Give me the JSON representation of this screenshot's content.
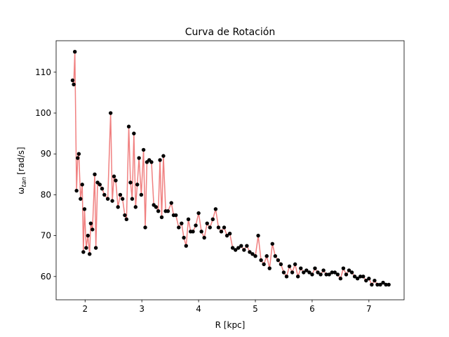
{
  "chart_data": {
    "type": "line",
    "title": "Curva de Rotación",
    "xlabel": "R [kpc]",
    "ylabel_symbol": "ω",
    "ylabel_subscript": "tan",
    "ylabel_unit": "[rad/s]",
    "xlim": [
      1.49,
      7.62
    ],
    "ylim": [
      54.3,
      117.7
    ],
    "xticks": [
      2,
      3,
      4,
      5,
      6,
      7
    ],
    "yticks": [
      60,
      70,
      80,
      90,
      100,
      110
    ],
    "line_color": "#f08080",
    "marker_color": "#000000",
    "x": [
      1.78,
      1.8,
      1.82,
      1.85,
      1.87,
      1.89,
      1.92,
      1.95,
      1.97,
      1.99,
      2.02,
      2.05,
      2.08,
      2.1,
      2.13,
      2.17,
      2.19,
      2.22,
      2.26,
      2.3,
      2.34,
      2.4,
      2.45,
      2.48,
      2.51,
      2.54,
      2.58,
      2.62,
      2.66,
      2.7,
      2.73,
      2.77,
      2.8,
      2.83,
      2.86,
      2.89,
      2.92,
      2.95,
      2.99,
      3.03,
      3.06,
      3.09,
      3.13,
      3.17,
      3.21,
      3.25,
      3.29,
      3.32,
      3.35,
      3.38,
      3.42,
      3.46,
      3.52,
      3.56,
      3.6,
      3.65,
      3.7,
      3.74,
      3.78,
      3.82,
      3.86,
      3.9,
      3.95,
      4.0,
      4.05,
      4.1,
      4.15,
      4.2,
      4.25,
      4.3,
      4.35,
      4.4,
      4.45,
      4.5,
      4.55,
      4.6,
      4.65,
      4.7,
      4.75,
      4.8,
      4.85,
      4.9,
      4.95,
      5.0,
      5.05,
      5.1,
      5.15,
      5.2,
      5.25,
      5.3,
      5.35,
      5.4,
      5.45,
      5.5,
      5.55,
      5.6,
      5.65,
      5.7,
      5.75,
      5.8,
      5.85,
      5.9,
      5.95,
      6.0,
      6.05,
      6.1,
      6.15,
      6.2,
      6.25,
      6.3,
      6.35,
      6.4,
      6.45,
      6.5,
      6.55,
      6.6,
      6.65,
      6.7,
      6.75,
      6.8,
      6.85,
      6.9,
      6.95,
      7.0,
      7.05,
      7.1,
      7.15,
      7.2,
      7.25,
      7.3,
      7.35
    ],
    "values": [
      108,
      107,
      115,
      81,
      89,
      90,
      79,
      82.5,
      66,
      76.5,
      67,
      70,
      65.5,
      73,
      71.5,
      85,
      67,
      83,
      82.5,
      81.5,
      80,
      79,
      100,
      78.5,
      84.5,
      83.5,
      77,
      80,
      79,
      75,
      74,
      96.7,
      83,
      79,
      95,
      77,
      82.5,
      89,
      80,
      91,
      72,
      88,
      88.5,
      88,
      77.5,
      77,
      76,
      88.5,
      74.5,
      89.5,
      76,
      76,
      78,
      75,
      75,
      72,
      73,
      69.5,
      67.5,
      74,
      71,
      71,
      72.5,
      75.5,
      71,
      69.5,
      73,
      72,
      74,
      76.5,
      72,
      71,
      72,
      70,
      70.5,
      67,
      66.5,
      67,
      67.5,
      66.5,
      67.5,
      66,
      65.5,
      65,
      70,
      64,
      63,
      65,
      62,
      68,
      65,
      64,
      63,
      61,
      60,
      62.5,
      61,
      63,
      60,
      62,
      61,
      61.5,
      61,
      60.5,
      62,
      61,
      60.5,
      61.5,
      60.5,
      60.5,
      61,
      61,
      60.5,
      59.5,
      62,
      60.5,
      61.5,
      61,
      60,
      59.5,
      60,
      60,
      59,
      59.5,
      58,
      59,
      58,
      58,
      58.5,
      58,
      58
    ]
  }
}
